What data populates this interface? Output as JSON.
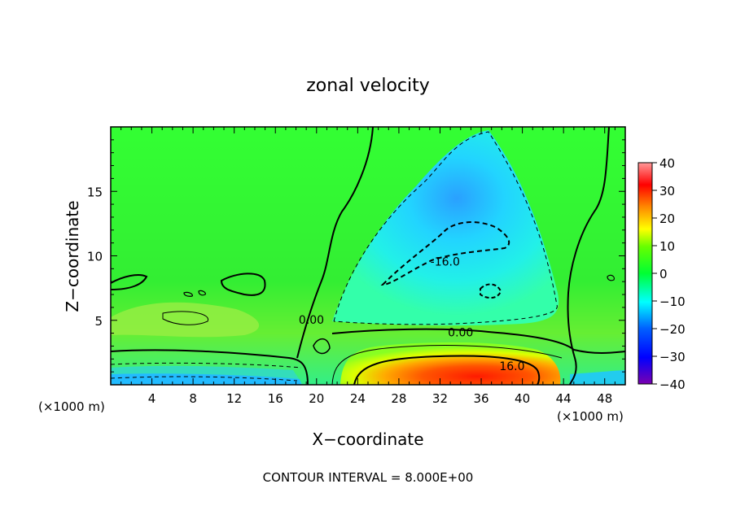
{
  "chart_data": {
    "type": "heatmap",
    "title": "zonal velocity",
    "xlabel": "X−coordinate",
    "ylabel": "Z−coordinate",
    "x_unit_left": "(×1000 m)",
    "x_unit_right": "(×1000 m)",
    "footer": "CONTOUR INTERVAL = 8.000E+00",
    "xlim": [
      0,
      50
    ],
    "ylim": [
      0,
      20
    ],
    "x_ticks": [
      4,
      8,
      12,
      16,
      20,
      24,
      28,
      32,
      36,
      40,
      44,
      48
    ],
    "x_tick_labels": [
      "4",
      "8",
      "12",
      "16",
      "20",
      "24",
      "28",
      "32",
      "36",
      "40",
      "44",
      "48"
    ],
    "y_ticks": [
      5,
      10,
      15
    ],
    "y_tick_labels": [
      "5",
      "10",
      "15"
    ],
    "colorbar": {
      "min": -40,
      "max": 40,
      "ticks": [
        40,
        30,
        20,
        10,
        0,
        -10,
        -20,
        -30,
        -40
      ],
      "tick_labels": [
        "40",
        "30",
        "20",
        "10",
        "0",
        "−10",
        "−20",
        "−30",
        "−40"
      ],
      "colors": [
        "#8000a0",
        "#0000ff",
        "#00a0ff",
        "#00ffff",
        "#00ff40",
        "#40ff00",
        "#ffff00",
        "#ff8000",
        "#ff0000",
        "#ff8080"
      ]
    },
    "contour_labels": [
      {
        "text": "0.00",
        "x": 19.5,
        "y": 5.0
      },
      {
        "text": "0.00",
        "x": 34.0,
        "y": 4.0
      },
      {
        "text": "-16.0",
        "x": 32.5,
        "y": 9.5
      },
      {
        "text": "16.0",
        "x": 39.0,
        "y": 1.4
      }
    ],
    "grid": false,
    "legend": "colorbar-right"
  }
}
